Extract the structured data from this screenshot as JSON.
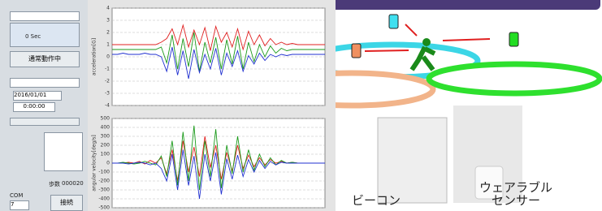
{
  "left_panel": {
    "time": "0 Sec",
    "status": "通常動作中",
    "date": "2016/01/01",
    "clock": "0:00:00",
    "steps_label": "歩数",
    "steps": "000020",
    "com_label": "COM",
    "com_port": "7",
    "connect": "接続"
  },
  "acceleration_chart": {
    "y_label": "acceleration[G]",
    "ylim": [
      -4,
      4
    ],
    "yticks": [
      4,
      3,
      2,
      1,
      0,
      -1,
      -2,
      -3,
      -4
    ],
    "series": [
      {
        "color": "#e02020",
        "values": [
          1,
          1,
          1,
          1,
          1,
          1,
          1,
          1,
          1,
          1.2,
          1.5,
          2.3,
          1,
          2.6,
          0.8,
          2.2,
          1,
          2.4,
          0.5,
          2.5,
          1.2,
          2,
          0.8,
          2.3,
          0.6,
          2.1,
          1,
          1.8,
          0.9,
          1.5,
          1,
          1.2,
          1,
          1.1,
          1,
          1,
          1,
          1,
          1,
          1
        ]
      },
      {
        "color": "#1a9a1a",
        "values": [
          0.6,
          0.6,
          0.6,
          0.6,
          0.6,
          0.6,
          0.6,
          0.6,
          0.6,
          0.8,
          -0.5,
          1.8,
          -1,
          1.5,
          -0.8,
          2,
          -1.2,
          1.2,
          -0.5,
          1.6,
          -1,
          1.4,
          -0.6,
          1.7,
          -1,
          1.2,
          -0.4,
          1,
          0,
          0.9,
          0.3,
          0.7,
          0.5,
          0.6,
          0.6,
          0.6,
          0.6,
          0.6,
          0.6,
          0.6
        ]
      },
      {
        "color": "#2030d0",
        "values": [
          0.2,
          0.2,
          0.3,
          0.2,
          0.2,
          0.2,
          0.3,
          0.2,
          0.2,
          0,
          -1.2,
          0.8,
          -1.5,
          0.5,
          -1.8,
          0.6,
          -1.3,
          0.2,
          -1,
          0.7,
          -1.5,
          0.3,
          -0.8,
          0.5,
          -1.2,
          0.1,
          -0.6,
          0.3,
          -0.3,
          0.2,
          0,
          0.2,
          0.1,
          0.2,
          0.2,
          0.2,
          0.2,
          0.2,
          0.2,
          0.2
        ]
      }
    ]
  },
  "gyro_chart": {
    "y_label": "angular velocity[deg/s]",
    "ylim": [
      -500,
      500
    ],
    "yticks": [
      500,
      400,
      300,
      200,
      100,
      0,
      -100,
      -200,
      -300,
      -400,
      -500
    ],
    "series": [
      {
        "color": "#e02020",
        "values": [
          0,
          0,
          0,
          10,
          0,
          20,
          -10,
          30,
          0,
          60,
          -120,
          150,
          -200,
          250,
          -100,
          180,
          -150,
          300,
          -50,
          200,
          -180,
          120,
          -90,
          200,
          -60,
          90,
          -40,
          60,
          -20,
          40,
          0,
          20,
          0,
          10,
          0,
          0,
          0,
          0,
          0,
          0
        ]
      },
      {
        "color": "#1a9a1a",
        "values": [
          0,
          0,
          10,
          0,
          -10,
          0,
          20,
          0,
          -20,
          80,
          -150,
          250,
          -250,
          350,
          -200,
          420,
          -300,
          250,
          -150,
          380,
          -280,
          200,
          -120,
          300,
          -100,
          150,
          -80,
          100,
          -40,
          60,
          -20,
          30,
          0,
          10,
          0,
          0,
          0,
          0,
          0,
          0
        ]
      },
      {
        "color": "#2030d0",
        "values": [
          0,
          0,
          0,
          -10,
          0,
          10,
          0,
          -20,
          0,
          -60,
          -200,
          100,
          -300,
          150,
          -250,
          80,
          -400,
          100,
          -200,
          120,
          -350,
          50,
          -180,
          90,
          -150,
          40,
          -100,
          30,
          -60,
          20,
          -20,
          10,
          0,
          0,
          0,
          0,
          0,
          0,
          0,
          0
        ]
      }
    ]
  },
  "illustration": {
    "beacon_label": "ビーコン",
    "sensor_label": "ウェアラブル センサー"
  }
}
